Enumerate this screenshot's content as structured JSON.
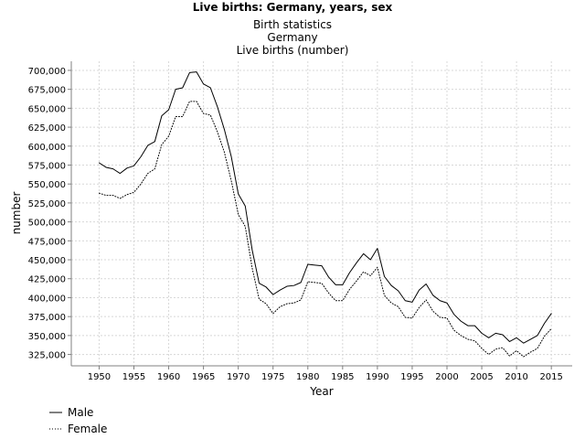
{
  "chart_data": {
    "type": "line",
    "title": "Live births: Germany, years, sex",
    "subtitle_lines": [
      "Birth statistics",
      "Germany",
      "Live births (number)"
    ],
    "xlabel": "Year",
    "ylabel": "number",
    "x": [
      1950,
      1951,
      1952,
      1953,
      1954,
      1955,
      1956,
      1957,
      1958,
      1959,
      1960,
      1961,
      1962,
      1963,
      1964,
      1965,
      1966,
      1967,
      1968,
      1969,
      1970,
      1971,
      1972,
      1973,
      1974,
      1975,
      1976,
      1977,
      1978,
      1979,
      1980,
      1981,
      1982,
      1983,
      1984,
      1985,
      1986,
      1987,
      1988,
      1989,
      1990,
      1991,
      1992,
      1993,
      1994,
      1995,
      1996,
      1997,
      1998,
      1999,
      2000,
      2001,
      2002,
      2003,
      2004,
      2005,
      2006,
      2007,
      2008,
      2009,
      2010,
      2011,
      2012,
      2013,
      2014,
      2015
    ],
    "series": [
      {
        "name": "Male",
        "values": [
          578000,
          572000,
          570000,
          564000,
          571000,
          574000,
          586000,
          601000,
          606000,
          640000,
          648000,
          675000,
          677000,
          697000,
          698000,
          682000,
          677000,
          652000,
          622000,
          586000,
          537000,
          521000,
          463000,
          419000,
          414000,
          404000,
          410000,
          415000,
          416000,
          420000,
          444000,
          443000,
          442000,
          427000,
          417000,
          417000,
          433000,
          446000,
          458000,
          450000,
          465000,
          428000,
          416000,
          409000,
          396000,
          394000,
          410000,
          418000,
          403000,
          396000,
          393000,
          378000,
          369000,
          363000,
          363000,
          353000,
          347000,
          353000,
          351000,
          342000,
          347000,
          340000,
          345000,
          350000,
          366000,
          379000
        ]
      },
      {
        "name": "Female",
        "values": [
          538000,
          535000,
          535000,
          531000,
          536000,
          539000,
          550000,
          564000,
          570000,
          602000,
          613000,
          639000,
          639000,
          659000,
          659000,
          643000,
          641000,
          619000,
          592000,
          554000,
          510000,
          494000,
          439000,
          398000,
          392000,
          379000,
          388000,
          392000,
          393000,
          397000,
          421000,
          420000,
          419000,
          406000,
          396000,
          396000,
          411000,
          422000,
          434000,
          429000,
          440000,
          403000,
          393000,
          388000,
          374000,
          373000,
          387000,
          397000,
          382000,
          374000,
          373000,
          357000,
          350000,
          345000,
          343000,
          333000,
          325000,
          332000,
          334000,
          323000,
          330000,
          322000,
          328000,
          333000,
          349000,
          359000
        ]
      }
    ],
    "xlim": [
      1946,
      2018
    ],
    "ylim": [
      310000,
      712000
    ],
    "x_ticks": [
      1950,
      1955,
      1960,
      1965,
      1970,
      1975,
      1980,
      1985,
      1990,
      1995,
      2000,
      2005,
      2010,
      2015
    ],
    "y_ticks": [
      325000,
      350000,
      375000,
      400000,
      425000,
      450000,
      475000,
      500000,
      525000,
      550000,
      575000,
      600000,
      625000,
      650000,
      675000,
      700000
    ],
    "grid": true,
    "legend_position": "bottom-left"
  },
  "styles": {
    "series_colors": [
      "#000000",
      "#000000"
    ],
    "grid_color": "#d8d8d8",
    "axis_color": "#808080",
    "text_color": "#000000"
  }
}
